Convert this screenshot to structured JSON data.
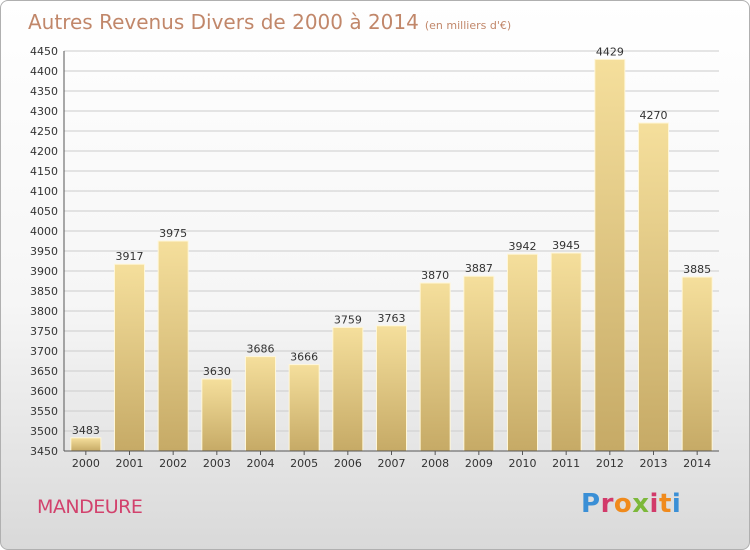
{
  "header": {
    "title": "Autres Revenus Divers de 2000 à 2014",
    "subtitle": "(en milliers d'€)"
  },
  "footer": {
    "commune": "MANDEURE",
    "brand": "Proxiti"
  },
  "colors": {
    "title": "#c1876a",
    "commune": "#d2426d",
    "bar_light": "#f3dc98",
    "bar_dark": "#c8ad6a",
    "grid": "#cccccc"
  },
  "chart_data": {
    "type": "bar",
    "title": "Autres Revenus Divers de 2000 à 2014",
    "subtitle": "(en milliers d'€)",
    "categories": [
      "2000",
      "2001",
      "2002",
      "2003",
      "2004",
      "2005",
      "2006",
      "2007",
      "2008",
      "2009",
      "2010",
      "2011",
      "2012",
      "2013",
      "2014"
    ],
    "values": [
      3483,
      3917,
      3975,
      3630,
      3686,
      3666,
      3759,
      3763,
      3870,
      3887,
      3942,
      3945,
      4429,
      4270,
      3885
    ],
    "ylim": [
      3450,
      4450
    ],
    "yticks": [
      3450,
      3500,
      3550,
      3600,
      3650,
      3700,
      3750,
      3800,
      3850,
      3900,
      3950,
      4000,
      4050,
      4100,
      4150,
      4200,
      4250,
      4300,
      4350,
      4400,
      4450
    ],
    "grid": true,
    "legend": "none",
    "xlabel": "",
    "ylabel": ""
  }
}
